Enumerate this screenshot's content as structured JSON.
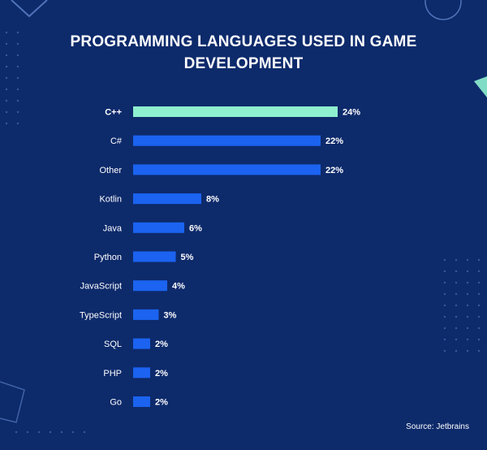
{
  "title_lines": [
    "PROGRAMMING LANGUAGES USED IN GAME",
    "DEVELOPMENT"
  ],
  "source": "Source: Jetbrains",
  "colors": {
    "background": "#0d2a6b",
    "highlight_bar": "#8ef0cf",
    "bar": "#1b63f0",
    "text": "#ffffff",
    "decor": "#6c92d8",
    "accent": "#8ef0cf"
  },
  "chart_data": {
    "type": "bar",
    "orientation": "horizontal",
    "title": "PROGRAMMING LANGUAGES USED IN GAME DEVELOPMENT",
    "categories": [
      "C++",
      "C#",
      "Other",
      "Kotlin",
      "Java",
      "Python",
      "JavaScript",
      "TypeScript",
      "SQL",
      "PHP",
      "Go"
    ],
    "values": [
      24,
      22,
      22,
      8,
      6,
      5,
      4,
      3,
      2,
      2,
      2
    ],
    "value_labels": [
      "24%",
      "22%",
      "22%",
      "8%",
      "6%",
      "5%",
      "4%",
      "3%",
      "2%",
      "2%",
      "2%"
    ],
    "unit": "%",
    "highlight_category": "C++",
    "xlim": [
      0,
      24
    ],
    "grid": false,
    "legend": "none",
    "xlabel": "",
    "ylabel": ""
  }
}
